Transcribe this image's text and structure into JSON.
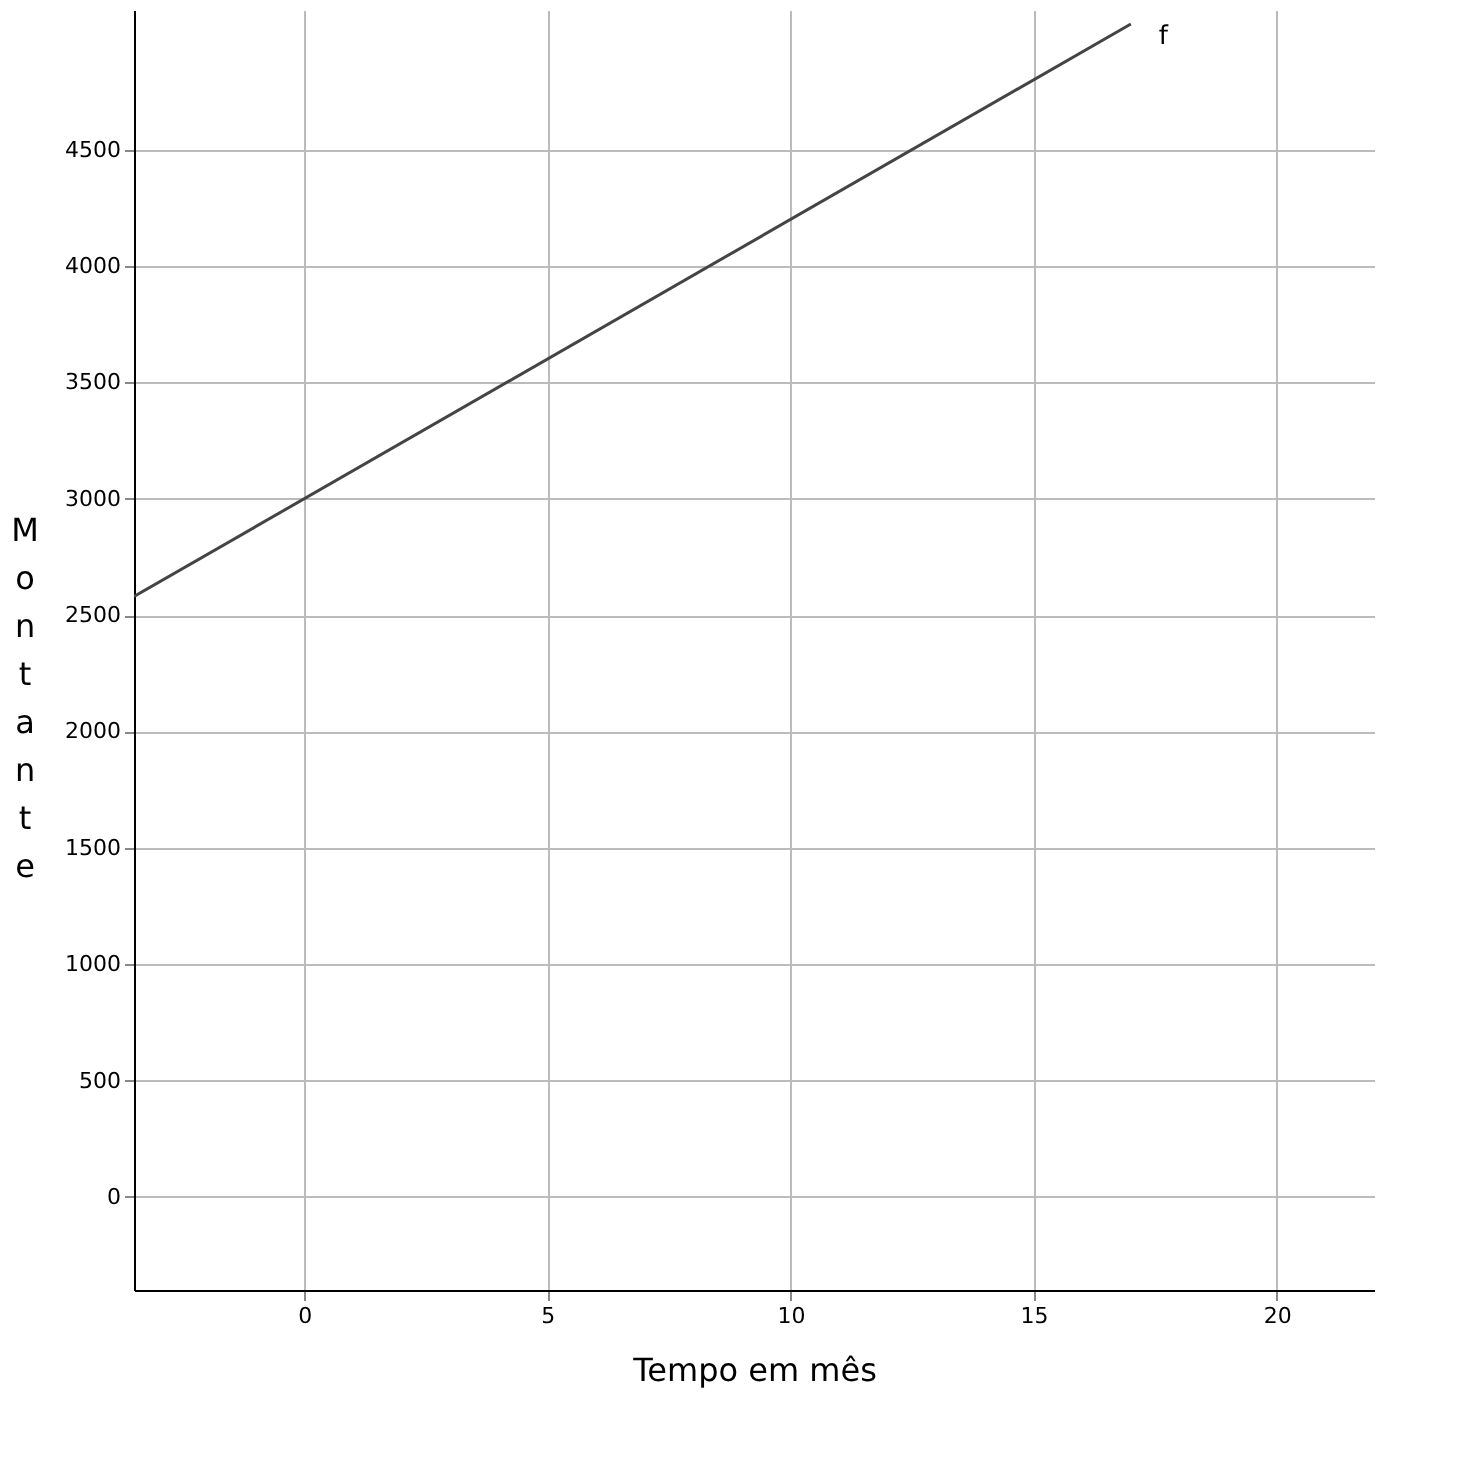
{
  "chart_data": {
    "type": "line",
    "xlabel": "Tempo em mês",
    "ylabel": "Montante",
    "x": [
      -3.5,
      17
    ],
    "series": [
      {
        "name": "f",
        "color": "#444444",
        "values": [
          2580,
          5040
        ]
      }
    ],
    "xlim": [
      -3.5,
      22
    ],
    "ylim": [
      -400,
      5100
    ],
    "xticks": [
      0,
      5,
      10,
      15,
      20
    ],
    "yticks": [
      0,
      500,
      1000,
      1500,
      2000,
      2500,
      3000,
      3500,
      4000,
      4500
    ],
    "grid": true,
    "legend": false,
    "marker": "none",
    "line_style": "solid"
  }
}
